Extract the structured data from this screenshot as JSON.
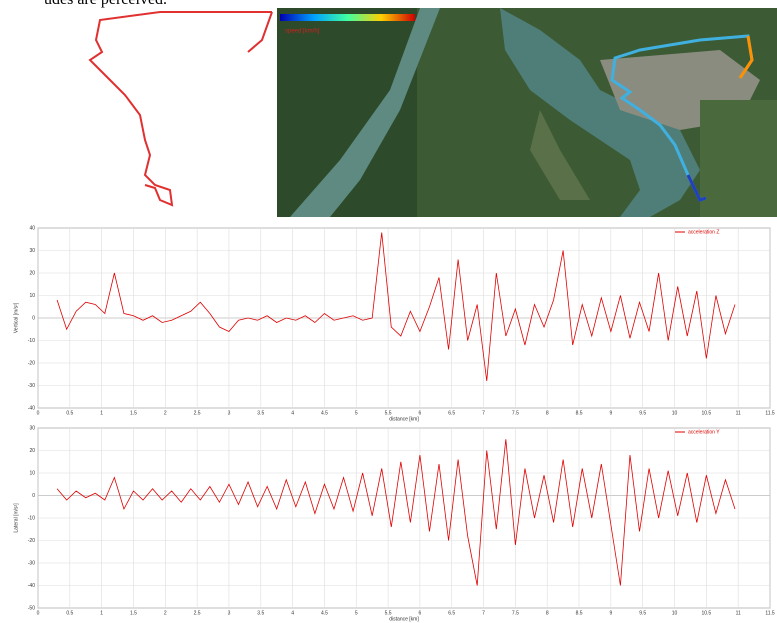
{
  "caption_fragment": "udes are perceived.",
  "map": {
    "colorbar_label": "speed [km/h]"
  },
  "chart_data": [
    {
      "type": "line",
      "y_label": "Vertical [m/s²]",
      "x_label": "distance [km]",
      "xlim": [
        0,
        11.5
      ],
      "xticks": [
        0,
        0.5,
        1,
        1.5,
        2,
        2.5,
        3,
        3.5,
        4,
        4.5,
        5,
        5.5,
        6,
        6.5,
        7,
        7.5,
        8,
        8.5,
        9,
        9.5,
        10,
        10.5,
        11,
        11.5
      ],
      "ylim": [
        -40,
        40
      ],
      "yticks": [
        -40,
        -30,
        -20,
        -10,
        0,
        10,
        20,
        30,
        40
      ],
      "grid": true,
      "legend": "upper right",
      "x": [
        0.3,
        0.45,
        0.6,
        0.75,
        0.9,
        1.05,
        1.2,
        1.35,
        1.5,
        1.65,
        1.8,
        1.95,
        2.1,
        2.25,
        2.4,
        2.55,
        2.7,
        2.85,
        3,
        3.15,
        3.3,
        3.45,
        3.6,
        3.75,
        3.9,
        4.05,
        4.2,
        4.35,
        4.5,
        4.65,
        4.8,
        4.95,
        5.1,
        5.25,
        5.4,
        5.55,
        5.7,
        5.85,
        6,
        6.15,
        6.3,
        6.45,
        6.6,
        6.75,
        6.9,
        7.05,
        7.2,
        7.35,
        7.5,
        7.65,
        7.8,
        7.95,
        8.1,
        8.25,
        8.4,
        8.55,
        8.7,
        8.85,
        9,
        9.15,
        9.3,
        9.45,
        9.6,
        9.75,
        9.9,
        10.05,
        10.2,
        10.35,
        10.5,
        10.65,
        10.8,
        10.95
      ],
      "series": [
        {
          "name": "acceleration Z",
          "color": "#e00000",
          "values": [
            8,
            -5,
            3,
            7,
            6,
            2,
            20,
            2,
            1,
            -1,
            1,
            -2,
            -1,
            1,
            3,
            7,
            2,
            -4,
            -6,
            -1,
            0,
            -1,
            1,
            -2,
            0,
            -1,
            1,
            -2,
            2,
            -1,
            0,
            1,
            -1,
            0,
            38,
            -4,
            -8,
            3,
            -6,
            5,
            18,
            -14,
            26,
            -10,
            6,
            -28,
            20,
            -8,
            4,
            -12,
            6,
            -4,
            8,
            30,
            -12,
            6,
            -8,
            9,
            -6,
            10,
            -9,
            7,
            -6,
            20,
            -10,
            14,
            -8,
            12,
            -18,
            10,
            -7,
            6
          ]
        }
      ]
    },
    {
      "type": "line",
      "y_label": "Lateral [m/s²]",
      "x_label": "distance [km]",
      "xlim": [
        0,
        11.5
      ],
      "xticks": [
        0,
        0.5,
        1,
        1.5,
        2,
        2.5,
        3,
        3.5,
        4,
        4.5,
        5,
        5.5,
        6,
        6.5,
        7,
        7.5,
        8,
        8.5,
        9,
        9.5,
        10,
        10.5,
        11,
        11.5
      ],
      "ylim": [
        -50,
        30
      ],
      "yticks": [
        -50,
        -40,
        -30,
        -20,
        -10,
        0,
        10,
        20,
        30
      ],
      "grid": true,
      "legend": "upper right",
      "x": [
        0.3,
        0.45,
        0.6,
        0.75,
        0.9,
        1.05,
        1.2,
        1.35,
        1.5,
        1.65,
        1.8,
        1.95,
        2.1,
        2.25,
        2.4,
        2.55,
        2.7,
        2.85,
        3,
        3.15,
        3.3,
        3.45,
        3.6,
        3.75,
        3.9,
        4.05,
        4.2,
        4.35,
        4.5,
        4.65,
        4.8,
        4.95,
        5.1,
        5.25,
        5.4,
        5.55,
        5.7,
        5.85,
        6,
        6.15,
        6.3,
        6.45,
        6.6,
        6.75,
        6.9,
        7.05,
        7.2,
        7.35,
        7.5,
        7.65,
        7.8,
        7.95,
        8.1,
        8.25,
        8.4,
        8.55,
        8.7,
        8.85,
        9,
        9.15,
        9.3,
        9.45,
        9.6,
        9.75,
        9.9,
        10.05,
        10.2,
        10.35,
        10.5,
        10.65,
        10.8,
        10.95
      ],
      "series": [
        {
          "name": "acceleration Y",
          "color": "#e00000",
          "values": [
            3,
            -2,
            2,
            -1,
            1,
            -2,
            8,
            -6,
            2,
            -2,
            3,
            -2,
            2,
            -3,
            3,
            -2,
            4,
            -3,
            5,
            -4,
            6,
            -5,
            4,
            -6,
            7,
            -5,
            6,
            -8,
            5,
            -6,
            8,
            -7,
            10,
            -9,
            12,
            -14,
            15,
            -12,
            18,
            -16,
            14,
            -20,
            16,
            -18,
            -40,
            20,
            -15,
            25,
            -22,
            12,
            -10,
            9,
            -12,
            16,
            -14,
            12,
            -10,
            14,
            -13,
            -40,
            18,
            -16,
            12,
            -10,
            11,
            -9,
            10,
            -12,
            9,
            -8,
            7,
            -6
          ]
        }
      ]
    }
  ]
}
